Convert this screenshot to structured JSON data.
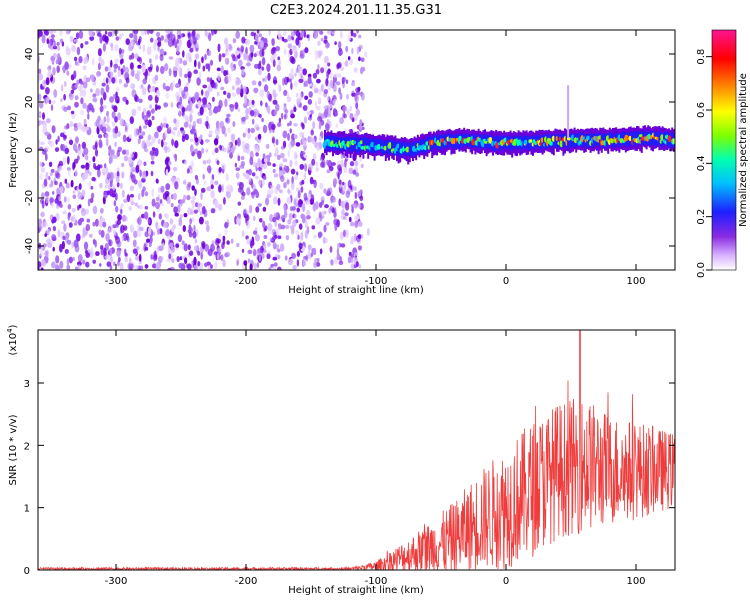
{
  "chart_data": [
    {
      "type": "heatmap",
      "title": "C2E3.2024.201.11.35.G31",
      "xlabel": "Height of straight line (km)",
      "ylabel": "Frequency (Hz)",
      "xlim": [
        -360,
        130
      ],
      "ylim": [
        -50,
        50
      ],
      "xticks": [
        -300,
        -200,
        -100,
        0,
        100
      ],
      "yticks": [
        -40,
        -20,
        0,
        20,
        40
      ],
      "noise_region_x": [
        -360,
        -110
      ],
      "signal_center_freq_hz": [
        {
          "x": -140,
          "y": 3
        },
        {
          "x": -110,
          "y": 2
        },
        {
          "x": -90,
          "y": 1
        },
        {
          "x": -75,
          "y": 0
        },
        {
          "x": -55,
          "y": 3
        },
        {
          "x": -35,
          "y": 4
        },
        {
          "x": -10,
          "y": 3
        },
        {
          "x": 20,
          "y": 3
        },
        {
          "x": 50,
          "y": 4
        },
        {
          "x": 80,
          "y": 4
        },
        {
          "x": 110,
          "y": 5
        },
        {
          "x": 130,
          "y": 4
        }
      ],
      "colorbar": {
        "label": "Normalized spectral amplitude",
        "range": [
          0.0,
          0.9
        ],
        "ticks": [
          0.0,
          0.2,
          0.4,
          0.6,
          0.8
        ],
        "colors": [
          "#ffffff",
          "#8a2be2",
          "#0000ff",
          "#00bfff",
          "#00ffb0",
          "#7fff00",
          "#ffff00",
          "#ff8c00",
          "#ff0000",
          "#ff1493"
        ]
      }
    },
    {
      "type": "line",
      "xlabel": "Height of straight line (km)",
      "ylabel": "SNR (10 * v/v)",
      "y_scale_label": "(x10",
      "y_scale_exp": "4",
      "y_scale_close": ")",
      "xlim": [
        -360,
        130
      ],
      "ylim": [
        0,
        3.85
      ],
      "xticks": [
        -300,
        -200,
        -100,
        0,
        100
      ],
      "yticks": [
        0,
        1,
        2,
        3
      ],
      "color": "#ee3333",
      "envelope": [
        {
          "x": -360,
          "mean": 0.02,
          "amp": 0.02
        },
        {
          "x": -120,
          "mean": 0.02,
          "amp": 0.02
        },
        {
          "x": -100,
          "mean": 0.06,
          "amp": 0.08
        },
        {
          "x": -80,
          "mean": 0.2,
          "amp": 0.25
        },
        {
          "x": -60,
          "mean": 0.35,
          "amp": 0.4
        },
        {
          "x": -40,
          "mean": 0.5,
          "amp": 0.6
        },
        {
          "x": -20,
          "mean": 0.8,
          "amp": 0.8
        },
        {
          "x": 0,
          "mean": 1.0,
          "amp": 1.0
        },
        {
          "x": 20,
          "mean": 1.3,
          "amp": 1.1
        },
        {
          "x": 40,
          "mean": 1.6,
          "amp": 1.1
        },
        {
          "x": 60,
          "mean": 1.7,
          "amp": 1.1
        },
        {
          "x": 80,
          "mean": 1.6,
          "amp": 0.9
        },
        {
          "x": 100,
          "mean": 1.6,
          "amp": 0.8
        },
        {
          "x": 130,
          "mean": 1.6,
          "amp": 0.6
        }
      ],
      "peak": {
        "x": 57,
        "y": 3.85
      }
    }
  ]
}
